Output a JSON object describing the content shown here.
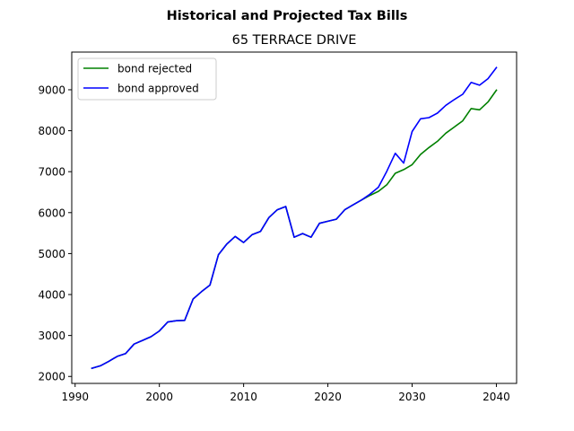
{
  "chart_data": {
    "type": "line",
    "suptitle": "Historical and Projected Tax Bills",
    "title": "65 TERRACE DRIVE",
    "xlabel": "",
    "ylabel": "",
    "xlim": [
      1989.6,
      2042.4
    ],
    "ylim": [
      1830,
      9920
    ],
    "xticks": [
      1990,
      2000,
      2010,
      2020,
      2030,
      2040
    ],
    "xtick_labels": [
      "1990",
      "2000",
      "2010",
      "2020",
      "2030",
      "2040"
    ],
    "yticks": [
      2000,
      3000,
      4000,
      5000,
      6000,
      7000,
      8000,
      9000
    ],
    "ytick_labels": [
      "2000",
      "3000",
      "4000",
      "5000",
      "6000",
      "7000",
      "8000",
      "9000"
    ],
    "grid": false,
    "legend_position": "top-left",
    "series": [
      {
        "name": "bond rejected",
        "color": "#008000",
        "x": [
          1992,
          1993,
          1994,
          1995,
          1996,
          1997,
          1998,
          1999,
          2000,
          2001,
          2002,
          2003,
          2004,
          2005,
          2006,
          2007,
          2008,
          2009,
          2010,
          2011,
          2012,
          2013,
          2014,
          2015,
          2016,
          2017,
          2018,
          2019,
          2020,
          2021,
          2022,
          2023,
          2024,
          2025,
          2026,
          2027,
          2028,
          2029,
          2030,
          2031,
          2032,
          2033,
          2034,
          2035,
          2036,
          2037,
          2038,
          2039,
          2040
        ],
        "y": [
          2200,
          2260,
          2370,
          2490,
          2560,
          2790,
          2880,
          2970,
          3110,
          3330,
          3360,
          3370,
          3890,
          4070,
          4230,
          4970,
          5230,
          5420,
          5270,
          5460,
          5540,
          5880,
          6070,
          6150,
          5400,
          5490,
          5400,
          5740,
          5790,
          5840,
          6070,
          6190,
          6310,
          6420,
          6520,
          6680,
          6960,
          7050,
          7170,
          7420,
          7590,
          7740,
          7940,
          8090,
          8240,
          8540,
          8510,
          8700,
          8990
        ]
      },
      {
        "name": "bond approved",
        "color": "#0000ff",
        "x": [
          1992,
          1993,
          1994,
          1995,
          1996,
          1997,
          1998,
          1999,
          2000,
          2001,
          2002,
          2003,
          2004,
          2005,
          2006,
          2007,
          2008,
          2009,
          2010,
          2011,
          2012,
          2013,
          2014,
          2015,
          2016,
          2017,
          2018,
          2019,
          2020,
          2021,
          2022,
          2023,
          2024,
          2025,
          2026,
          2027,
          2028,
          2029,
          2030,
          2031,
          2032,
          2033,
          2034,
          2035,
          2036,
          2037,
          2038,
          2039,
          2040
        ],
        "y": [
          2200,
          2260,
          2370,
          2490,
          2560,
          2790,
          2880,
          2970,
          3110,
          3330,
          3360,
          3370,
          3890,
          4070,
          4230,
          4970,
          5230,
          5420,
          5270,
          5460,
          5540,
          5880,
          6070,
          6150,
          5400,
          5490,
          5400,
          5740,
          5790,
          5840,
          6070,
          6190,
          6310,
          6450,
          6620,
          7010,
          7450,
          7210,
          7980,
          8290,
          8320,
          8430,
          8620,
          8760,
          8890,
          9180,
          9110,
          9270,
          9540
        ]
      }
    ]
  }
}
